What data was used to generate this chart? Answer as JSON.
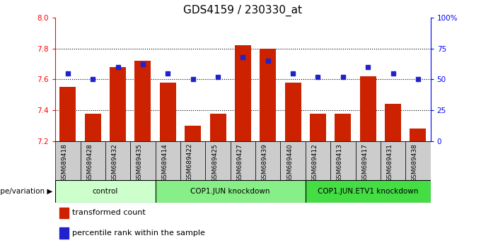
{
  "title": "GDS4159 / 230330_at",
  "samples": [
    "GSM689418",
    "GSM689428",
    "GSM689432",
    "GSM689435",
    "GSM689414",
    "GSM689422",
    "GSM689425",
    "GSM689427",
    "GSM689439",
    "GSM689440",
    "GSM689412",
    "GSM689413",
    "GSM689417",
    "GSM689431",
    "GSM689438"
  ],
  "bar_values": [
    7.55,
    7.38,
    7.68,
    7.72,
    7.58,
    7.3,
    7.38,
    7.82,
    7.8,
    7.58,
    7.38,
    7.38,
    7.62,
    7.44,
    7.28
  ],
  "dot_values": [
    55,
    50,
    60,
    62,
    55,
    50,
    52,
    68,
    65,
    55,
    52,
    52,
    60,
    55,
    50
  ],
  "ymin": 7.2,
  "ymax": 8.0,
  "yticks": [
    7.2,
    7.4,
    7.6,
    7.8,
    8.0
  ],
  "right_yticks": [
    0,
    25,
    50,
    75,
    100
  ],
  "right_ytick_labels": [
    "0",
    "25",
    "50",
    "75",
    "100%"
  ],
  "bar_color": "#cc2200",
  "dot_color": "#2222cc",
  "plot_bg_color": "#ffffff",
  "group_labels": [
    "control",
    "COP1.JUN knockdown",
    "COP1.JUN.ETV1 knockdown"
  ],
  "group_ranges": [
    [
      0,
      4
    ],
    [
      4,
      10
    ],
    [
      10,
      15
    ]
  ],
  "group_colors": [
    "#ccffcc",
    "#88ee88",
    "#44dd44"
  ],
  "sample_box_color": "#cccccc",
  "title_fontsize": 11,
  "tick_label_fontsize": 7.5,
  "dotted_line_values": [
    7.4,
    7.6,
    7.8
  ]
}
